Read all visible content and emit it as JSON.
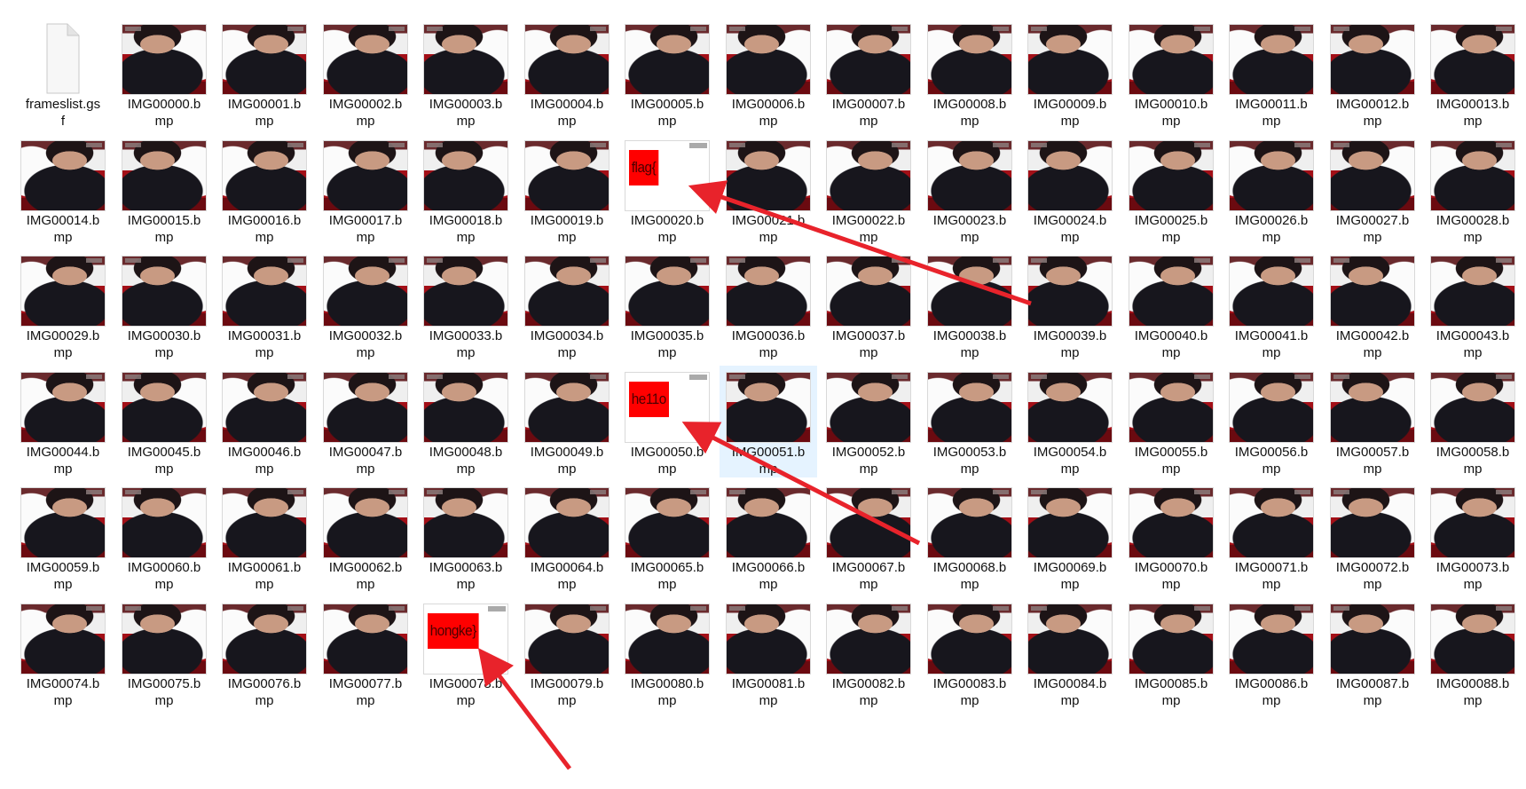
{
  "explorer": {
    "files": [
      {
        "name": "frameslist.gsf",
        "line1": "frameslist.gs",
        "line2": "f",
        "type": "document",
        "icon": "blank-document-icon"
      },
      {
        "name": "IMG00000.bmp",
        "line1": "IMG00000.b",
        "line2": "mp",
        "type": "image"
      },
      {
        "name": "IMG00001.bmp",
        "line1": "IMG00001.b",
        "line2": "mp",
        "type": "image"
      },
      {
        "name": "IMG00002.bmp",
        "line1": "IMG00002.b",
        "line2": "mp",
        "type": "image"
      },
      {
        "name": "IMG00003.bmp",
        "line1": "IMG00003.b",
        "line2": "mp",
        "type": "image"
      },
      {
        "name": "IMG00004.bmp",
        "line1": "IMG00004.b",
        "line2": "mp",
        "type": "image"
      },
      {
        "name": "IMG00005.bmp",
        "line1": "IMG00005.b",
        "line2": "mp",
        "type": "image"
      },
      {
        "name": "IMG00006.bmp",
        "line1": "IMG00006.b",
        "line2": "mp",
        "type": "image"
      },
      {
        "name": "IMG00007.bmp",
        "line1": "IMG00007.b",
        "line2": "mp",
        "type": "image"
      },
      {
        "name": "IMG00008.bmp",
        "line1": "IMG00008.b",
        "line2": "mp",
        "type": "image"
      },
      {
        "name": "IMG00009.bmp",
        "line1": "IMG00009.b",
        "line2": "mp",
        "type": "image"
      },
      {
        "name": "IMG00010.bmp",
        "line1": "IMG00010.b",
        "line2": "mp",
        "type": "image"
      },
      {
        "name": "IMG00011.bmp",
        "line1": "IMG00011.b",
        "line2": "mp",
        "type": "image"
      },
      {
        "name": "IMG00012.bmp",
        "line1": "IMG00012.b",
        "line2": "mp",
        "type": "image"
      },
      {
        "name": "IMG00013.bmp",
        "line1": "IMG00013.b",
        "line2": "mp",
        "type": "image"
      },
      {
        "name": "IMG00014.bmp",
        "line1": "IMG00014.b",
        "line2": "mp",
        "type": "image"
      },
      {
        "name": "IMG00015.bmp",
        "line1": "IMG00015.b",
        "line2": "mp",
        "type": "image"
      },
      {
        "name": "IMG00016.bmp",
        "line1": "IMG00016.b",
        "line2": "mp",
        "type": "image"
      },
      {
        "name": "IMG00017.bmp",
        "line1": "IMG00017.b",
        "line2": "mp",
        "type": "image"
      },
      {
        "name": "IMG00018.bmp",
        "line1": "IMG00018.b",
        "line2": "mp",
        "type": "image"
      },
      {
        "name": "IMG00019.bmp",
        "line1": "IMG00019.b",
        "line2": "mp",
        "type": "image"
      },
      {
        "name": "IMG00020.bmp",
        "line1": "IMG00020.b",
        "line2": "mp",
        "type": "image",
        "hidden_text": "flag{"
      },
      {
        "name": "IMG00021.bmp",
        "line1": "IMG00021.b",
        "line2": "mp",
        "type": "image"
      },
      {
        "name": "IMG00022.bmp",
        "line1": "IMG00022.b",
        "line2": "mp",
        "type": "image"
      },
      {
        "name": "IMG00023.bmp",
        "line1": "IMG00023.b",
        "line2": "mp",
        "type": "image"
      },
      {
        "name": "IMG00024.bmp",
        "line1": "IMG00024.b",
        "line2": "mp",
        "type": "image"
      },
      {
        "name": "IMG00025.bmp",
        "line1": "IMG00025.b",
        "line2": "mp",
        "type": "image"
      },
      {
        "name": "IMG00026.bmp",
        "line1": "IMG00026.b",
        "line2": "mp",
        "type": "image"
      },
      {
        "name": "IMG00027.bmp",
        "line1": "IMG00027.b",
        "line2": "mp",
        "type": "image"
      },
      {
        "name": "IMG00028.bmp",
        "line1": "IMG00028.b",
        "line2": "mp",
        "type": "image"
      },
      {
        "name": "IMG00029.bmp",
        "line1": "IMG00029.b",
        "line2": "mp",
        "type": "image"
      },
      {
        "name": "IMG00030.bmp",
        "line1": "IMG00030.b",
        "line2": "mp",
        "type": "image"
      },
      {
        "name": "IMG00031.bmp",
        "line1": "IMG00031.b",
        "line2": "mp",
        "type": "image"
      },
      {
        "name": "IMG00032.bmp",
        "line1": "IMG00032.b",
        "line2": "mp",
        "type": "image"
      },
      {
        "name": "IMG00033.bmp",
        "line1": "IMG00033.b",
        "line2": "mp",
        "type": "image"
      },
      {
        "name": "IMG00034.bmp",
        "line1": "IMG00034.b",
        "line2": "mp",
        "type": "image"
      },
      {
        "name": "IMG00035.bmp",
        "line1": "IMG00035.b",
        "line2": "mp",
        "type": "image"
      },
      {
        "name": "IMG00036.bmp",
        "line1": "IMG00036.b",
        "line2": "mp",
        "type": "image"
      },
      {
        "name": "IMG00037.bmp",
        "line1": "IMG00037.b",
        "line2": "mp",
        "type": "image"
      },
      {
        "name": "IMG00038.bmp",
        "line1": "IMG00038.b",
        "line2": "mp",
        "type": "image"
      },
      {
        "name": "IMG00039.bmp",
        "line1": "IMG00039.b",
        "line2": "mp",
        "type": "image"
      },
      {
        "name": "IMG00040.bmp",
        "line1": "IMG00040.b",
        "line2": "mp",
        "type": "image"
      },
      {
        "name": "IMG00041.bmp",
        "line1": "IMG00041.b",
        "line2": "mp",
        "type": "image"
      },
      {
        "name": "IMG00042.bmp",
        "line1": "IMG00042.b",
        "line2": "mp",
        "type": "image"
      },
      {
        "name": "IMG00043.bmp",
        "line1": "IMG00043.b",
        "line2": "mp",
        "type": "image"
      },
      {
        "name": "IMG00044.bmp",
        "line1": "IMG00044.b",
        "line2": "mp",
        "type": "image"
      },
      {
        "name": "IMG00045.bmp",
        "line1": "IMG00045.b",
        "line2": "mp",
        "type": "image"
      },
      {
        "name": "IMG00046.bmp",
        "line1": "IMG00046.b",
        "line2": "mp",
        "type": "image"
      },
      {
        "name": "IMG00047.bmp",
        "line1": "IMG00047.b",
        "line2": "mp",
        "type": "image"
      },
      {
        "name": "IMG00048.bmp",
        "line1": "IMG00048.b",
        "line2": "mp",
        "type": "image"
      },
      {
        "name": "IMG00049.bmp",
        "line1": "IMG00049.b",
        "line2": "mp",
        "type": "image"
      },
      {
        "name": "IMG00050.bmp",
        "line1": "IMG00050.b",
        "line2": "mp",
        "type": "image",
        "hidden_text": "he11o"
      },
      {
        "name": "IMG00051.bmp",
        "line1": "IMG00051.b",
        "line2": "mp",
        "type": "image",
        "selected": true
      },
      {
        "name": "IMG00052.bmp",
        "line1": "IMG00052.b",
        "line2": "mp",
        "type": "image"
      },
      {
        "name": "IMG00053.bmp",
        "line1": "IMG00053.b",
        "line2": "mp",
        "type": "image"
      },
      {
        "name": "IMG00054.bmp",
        "line1": "IMG00054.b",
        "line2": "mp",
        "type": "image"
      },
      {
        "name": "IMG00055.bmp",
        "line1": "IMG00055.b",
        "line2": "mp",
        "type": "image"
      },
      {
        "name": "IMG00056.bmp",
        "line1": "IMG00056.b",
        "line2": "mp",
        "type": "image"
      },
      {
        "name": "IMG00057.bmp",
        "line1": "IMG00057.b",
        "line2": "mp",
        "type": "image"
      },
      {
        "name": "IMG00058.bmp",
        "line1": "IMG00058.b",
        "line2": "mp",
        "type": "image"
      },
      {
        "name": "IMG00059.bmp",
        "line1": "IMG00059.b",
        "line2": "mp",
        "type": "image"
      },
      {
        "name": "IMG00060.bmp",
        "line1": "IMG00060.b",
        "line2": "mp",
        "type": "image"
      },
      {
        "name": "IMG00061.bmp",
        "line1": "IMG00061.b",
        "line2": "mp",
        "type": "image"
      },
      {
        "name": "IMG00062.bmp",
        "line1": "IMG00062.b",
        "line2": "mp",
        "type": "image"
      },
      {
        "name": "IMG00063.bmp",
        "line1": "IMG00063.b",
        "line2": "mp",
        "type": "image"
      },
      {
        "name": "IMG00064.bmp",
        "line1": "IMG00064.b",
        "line2": "mp",
        "type": "image"
      },
      {
        "name": "IMG00065.bmp",
        "line1": "IMG00065.b",
        "line2": "mp",
        "type": "image"
      },
      {
        "name": "IMG00066.bmp",
        "line1": "IMG00066.b",
        "line2": "mp",
        "type": "image"
      },
      {
        "name": "IMG00067.bmp",
        "line1": "IMG00067.b",
        "line2": "mp",
        "type": "image"
      },
      {
        "name": "IMG00068.bmp",
        "line1": "IMG00068.b",
        "line2": "mp",
        "type": "image"
      },
      {
        "name": "IMG00069.bmp",
        "line1": "IMG00069.b",
        "line2": "mp",
        "type": "image"
      },
      {
        "name": "IMG00070.bmp",
        "line1": "IMG00070.b",
        "line2": "mp",
        "type": "image"
      },
      {
        "name": "IMG00071.bmp",
        "line1": "IMG00071.b",
        "line2": "mp",
        "type": "image"
      },
      {
        "name": "IMG00072.bmp",
        "line1": "IMG00072.b",
        "line2": "mp",
        "type": "image"
      },
      {
        "name": "IMG00073.bmp",
        "line1": "IMG00073.b",
        "line2": "mp",
        "type": "image"
      },
      {
        "name": "IMG00074.bmp",
        "line1": "IMG00074.b",
        "line2": "mp",
        "type": "image"
      },
      {
        "name": "IMG00075.bmp",
        "line1": "IMG00075.b",
        "line2": "mp",
        "type": "image"
      },
      {
        "name": "IMG00076.bmp",
        "line1": "IMG00076.b",
        "line2": "mp",
        "type": "image"
      },
      {
        "name": "IMG00077.bmp",
        "line1": "IMG00077.b",
        "line2": "mp",
        "type": "image"
      },
      {
        "name": "IMG00078.bmp",
        "line1": "IMG00078.b",
        "line2": "mp",
        "type": "image",
        "hidden_text": "hongke}"
      },
      {
        "name": "IMG00079.bmp",
        "line1": "IMG00079.b",
        "line2": "mp",
        "type": "image"
      },
      {
        "name": "IMG00080.bmp",
        "line1": "IMG00080.b",
        "line2": "mp",
        "type": "image"
      },
      {
        "name": "IMG00081.bmp",
        "line1": "IMG00081.b",
        "line2": "mp",
        "type": "image"
      },
      {
        "name": "IMG00082.bmp",
        "line1": "IMG00082.b",
        "line2": "mp",
        "type": "image"
      },
      {
        "name": "IMG00083.bmp",
        "line1": "IMG00083.b",
        "line2": "mp",
        "type": "image"
      },
      {
        "name": "IMG00084.bmp",
        "line1": "IMG00084.b",
        "line2": "mp",
        "type": "image"
      },
      {
        "name": "IMG00085.bmp",
        "line1": "IMG00085.b",
        "line2": "mp",
        "type": "image"
      },
      {
        "name": "IMG00086.bmp",
        "line1": "IMG00086.b",
        "line2": "mp",
        "type": "image"
      },
      {
        "name": "IMG00087.bmp",
        "line1": "IMG00087.b",
        "line2": "mp",
        "type": "image"
      },
      {
        "name": "IMG00088.bmp",
        "line1": "IMG00088.b",
        "line2": "mp",
        "type": "image"
      }
    ]
  },
  "annotations": {
    "arrow_color": "#e8232b",
    "targets": [
      "IMG00020.bmp",
      "IMG00050.bmp",
      "IMG00078.bmp"
    ]
  },
  "colors": {
    "selection_background": "#e5f3ff",
    "hidden_frame_red": "#ff0000"
  }
}
